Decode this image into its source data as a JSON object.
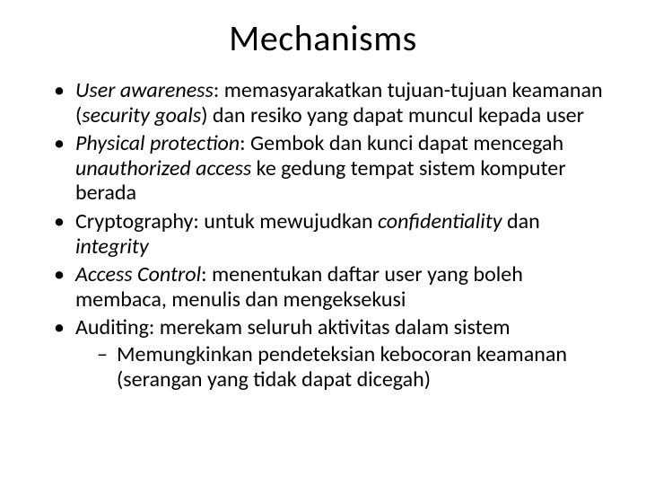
{
  "title": "Mechanisms",
  "bullets": [
    {
      "segments": [
        {
          "t": "User awareness",
          "italic": true
        },
        {
          "t": ": memasyarakatkan tujuan-tujuan keamanan (",
          "italic": false
        },
        {
          "t": "security goals",
          "italic": true
        },
        {
          "t": ") dan resiko yang dapat muncul kepada user",
          "italic": false
        }
      ]
    },
    {
      "segments": [
        {
          "t": "Physical protection",
          "italic": true
        },
        {
          "t": ": Gembok dan kunci dapat mencegah ",
          "italic": false
        },
        {
          "t": "unauthorized access",
          "italic": true
        },
        {
          "t": " ke gedung tempat sistem komputer berada",
          "italic": false
        }
      ]
    },
    {
      "segments": [
        {
          "t": "Cryptography: untuk mewujudkan ",
          "italic": false
        },
        {
          "t": "confidentiality",
          "italic": true
        },
        {
          "t": " dan ",
          "italic": false
        },
        {
          "t": "integrity",
          "italic": true
        }
      ]
    },
    {
      "segments": [
        {
          "t": "Access Control",
          "italic": true
        },
        {
          "t": ": menentukan daftar user yang boleh membaca, menulis dan mengeksekusi",
          "italic": false
        }
      ]
    },
    {
      "segments": [
        {
          "t": "Auditing: merekam seluruh aktivitas dalam sistem",
          "italic": false
        }
      ],
      "sub": [
        {
          "segments": [
            {
              "t": "Memungkinkan pendeteksian kebocoran keamanan (serangan yang tidak dapat dicegah)",
              "italic": false
            }
          ]
        }
      ]
    }
  ],
  "colors": {
    "background": "#ffffff",
    "text": "#000000"
  },
  "typography": {
    "title_fontsize": 40,
    "body_fontsize": 24,
    "font_family": "Calibri"
  }
}
